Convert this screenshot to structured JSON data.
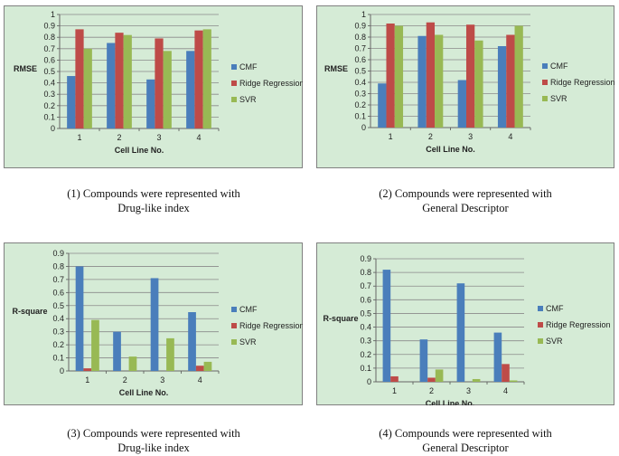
{
  "chart_data": [
    {
      "type": "bar",
      "title": "",
      "xlabel": "Cell Line No.",
      "ylabel": "RMSE",
      "categories": [
        "1",
        "2",
        "3",
        "4"
      ],
      "ylim": [
        0,
        1
      ],
      "yticks": [
        "0",
        "0.1",
        "0.2",
        "0.3",
        "0.4",
        "0.5",
        "0.6",
        "0.7",
        "0.8",
        "0.9",
        "1"
      ],
      "series": [
        {
          "name": "CMF",
          "values": [
            0.46,
            0.75,
            0.43,
            0.68
          ]
        },
        {
          "name": "Ridge Regression",
          "values": [
            0.87,
            0.84,
            0.79,
            0.86
          ]
        },
        {
          "name": "SVR",
          "values": [
            0.7,
            0.82,
            0.68,
            0.87
          ]
        }
      ],
      "legend": "right",
      "grid": true,
      "caption": "(1) Compounds were represented with\nDrug-like index"
    },
    {
      "type": "bar",
      "title": "",
      "xlabel": "Cell Line No.",
      "ylabel": "RMSE",
      "categories": [
        "1",
        "2",
        "3",
        "4"
      ],
      "ylim": [
        0,
        1
      ],
      "yticks": [
        "0",
        "0.1",
        "0.2",
        "0.3",
        "0.4",
        "0.5",
        "0.6",
        "0.7",
        "0.8",
        "0.9",
        "1"
      ],
      "series": [
        {
          "name": "CMF",
          "values": [
            0.39,
            0.81,
            0.42,
            0.72
          ]
        },
        {
          "name": "Ridge Regression",
          "values": [
            0.92,
            0.93,
            0.91,
            0.82
          ]
        },
        {
          "name": "SVR",
          "values": [
            0.9,
            0.82,
            0.77,
            0.9
          ]
        }
      ],
      "legend": "right",
      "grid": true,
      "caption": "(2) Compounds were represented with\nGeneral Descriptor"
    },
    {
      "type": "bar",
      "title": "",
      "xlabel": "Cell Line No.",
      "ylabel": "R-square",
      "categories": [
        "1",
        "2",
        "3",
        "4"
      ],
      "ylim": [
        0,
        0.9
      ],
      "yticks": [
        "0",
        "0.1",
        "0.2",
        "0.3",
        "0.4",
        "0.5",
        "0.6",
        "0.7",
        "0.8",
        "0.9"
      ],
      "series": [
        {
          "name": "CMF",
          "values": [
            0.8,
            0.3,
            0.71,
            0.45
          ]
        },
        {
          "name": "Ridge Regression",
          "values": [
            0.02,
            0.0,
            0.0,
            0.04
          ]
        },
        {
          "name": "SVR",
          "values": [
            0.39,
            0.11,
            0.25,
            0.07
          ]
        }
      ],
      "legend": "right",
      "grid": true,
      "caption": "(3) Compounds were represented with\nDrug-like index"
    },
    {
      "type": "bar",
      "title": "",
      "xlabel": "Cell Line No.",
      "ylabel": "R-square",
      "categories": [
        "1",
        "2",
        "3",
        "4"
      ],
      "ylim": [
        0,
        0.9
      ],
      "yticks": [
        "0",
        "0.1",
        "0.2",
        "0.3",
        "0.4",
        "0.5",
        "0.6",
        "0.7",
        "0.8",
        "0.9"
      ],
      "series": [
        {
          "name": "CMF",
          "values": [
            0.82,
            0.31,
            0.72,
            0.36
          ]
        },
        {
          "name": "Ridge Regression",
          "values": [
            0.04,
            0.03,
            0.0,
            0.13
          ]
        },
        {
          "name": "SVR",
          "values": [
            0.0,
            0.09,
            0.02,
            0.01
          ]
        }
      ],
      "legend": "right",
      "grid": true,
      "caption": "(4) Compounds were represented with\nGeneral Descriptor"
    }
  ],
  "colors": {
    "panel_background": "#d5ebd6",
    "panel_border": "#808080",
    "grid": "#8a8a8a",
    "series": [
      "#4a7ebb",
      "#be4b48",
      "#98b954"
    ]
  }
}
